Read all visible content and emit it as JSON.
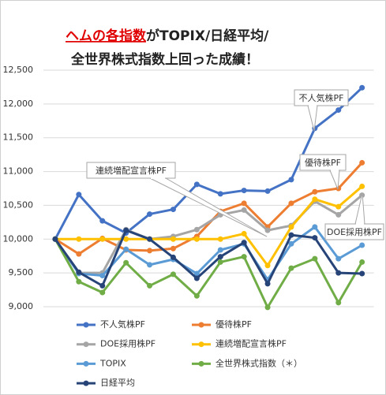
{
  "chart_data": {
    "type": "line",
    "title": [
      "ヘムの各指数",
      "がTOPIX/日経平均/",
      "全世界株式指数上回った成績！"
    ],
    "categories": [
      null,
      null,
      null,
      null,
      null,
      null,
      null,
      null,
      null,
      null,
      null,
      null,
      null,
      null
    ],
    "series": [
      {
        "name": "不人気株PF",
        "color": "#4472c4",
        "values": [
          10000,
          10660,
          10270,
          10090,
          10370,
          10440,
          10810,
          10670,
          10720,
          10710,
          10880,
          11640,
          11910,
          12240
        ]
      },
      {
        "name": "優待株PF",
        "color": "#ed7d31",
        "values": [
          10000,
          9780,
          10010,
          9840,
          9830,
          9860,
          10040,
          10410,
          10530,
          10180,
          10530,
          10700,
          10750,
          11130
        ]
      },
      {
        "name": "DOE採用株PF",
        "color": "#a5a5a5",
        "values": [
          10000,
          9500,
          9500,
          10140,
          10000,
          10040,
          10140,
          10360,
          10430,
          10130,
          10200,
          10560,
          10360,
          10650
        ]
      },
      {
        "name": "連続増配宣言株PF",
        "color": "#ffc000",
        "values": [
          10000,
          10000,
          10000,
          10000,
          10000,
          10000,
          10000,
          10000,
          10080,
          9610,
          10180,
          10590,
          10480,
          10780
        ]
      },
      {
        "name": "TOPIX",
        "color": "#5b9bd5",
        "values": [
          10000,
          9490,
          9460,
          9850,
          9620,
          9700,
          9490,
          9840,
          9930,
          9400,
          9930,
          10180,
          9710,
          9910
        ]
      },
      {
        "name": "全世界株式指数（＊）",
        "color": "#70ad47",
        "values": [
          10000,
          9370,
          9210,
          9650,
          9310,
          9480,
          9160,
          9660,
          9740,
          8990,
          9570,
          9710,
          9060,
          9660
        ]
      },
      {
        "name": "日経平均",
        "color": "#264478",
        "values": [
          10000,
          9510,
          9310,
          10130,
          10000,
          9730,
          9420,
          9740,
          9950,
          9340,
          10060,
          10020,
          9500,
          9490
        ]
      }
    ],
    "ylim": [
      9000,
      12500
    ],
    "yticks": [
      {
        "value": 9000,
        "label": "9,000"
      },
      {
        "value": 9500,
        "label": "9,500"
      },
      {
        "value": 10000,
        "label": "10,000"
      },
      {
        "value": 10500,
        "label": "10,500"
      },
      {
        "value": 11000,
        "label": "11,000"
      },
      {
        "value": 11500,
        "label": "11,500"
      },
      {
        "value": 12000,
        "label": "12,000"
      },
      {
        "value": 12500,
        "label": "12,500"
      }
    ],
    "grid": true,
    "annotations": [
      "不人気株PF",
      "優待株PF",
      "連続増配宣言株PF",
      "DOE採用株PF"
    ]
  }
}
